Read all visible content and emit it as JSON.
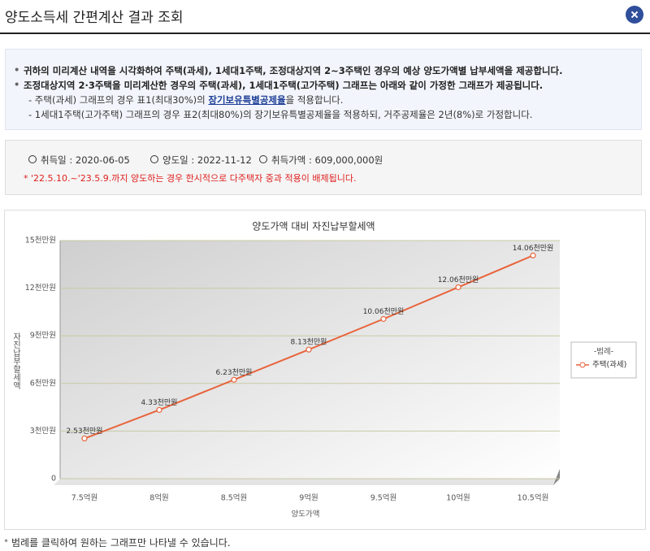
{
  "header": {
    "title": "양도소득세 간편계산 결과 조회"
  },
  "notice": {
    "items": [
      "귀하의 미리계산 내역을 시각화하여 주택(과세), 1세대1주택, 조정대상지역 2~3주택인 경우의 예상 양도가액별 납부세액을 제공합니다.",
      "조정대상지역 2·3주택을 미리계산한 경우의 주택(과세), 1세대1주택(고가주택) 그래프는 아래와 같이 가정한 그래프가 제공됩니다."
    ],
    "sub1": {
      "before": "- 주택(과세) 그래프의 경우 표1(최대30%)의 ",
      "link": "장기보유특별공제율",
      "after": "을 적용합니다."
    },
    "sub2": "- 1세대1주택(고가주택) 그래프의 경우 표2(최대80%)의 장기보유특별공제율을 적용하되, 거주공제율은 2년(8%)로 가정합니다."
  },
  "info": {
    "items": [
      "취득일 : 2020-06-05",
      "양도일 : 2022-11-12",
      "취득가액 : 609,000,000원"
    ],
    "warning": "* '22.5.10.~'23.5.9.까지 양도하는 경우 한시적으로 다주택자 중과 적용이 배제됩니다."
  },
  "chart_data": {
    "type": "line",
    "title": "양도가액 대비 자진납부할세액",
    "x_label": "양도가액",
    "y_label": "자진납부할세액",
    "categories": [
      "7.5억원",
      "8억원",
      "8.5억원",
      "9억원",
      "9.5억원",
      "10억원",
      "10.5억원"
    ],
    "series": [
      {
        "name": "주택(과세)",
        "color": "#e8643c",
        "values": [
          2.53,
          4.33,
          6.23,
          8.13,
          10.06,
          12.06,
          14.06
        ],
        "value_labels": [
          "2.53천만원",
          "4.33천만원",
          "6.23천만원",
          "8.13천만원",
          "10.06천만원",
          "12.06천만원",
          "14.06천만원"
        ]
      }
    ],
    "ylim": [
      0,
      15
    ],
    "yticks": [
      0,
      {
        "value": 3,
        "label": "3천만원"
      },
      {
        "value": 6,
        "label": "6천만원"
      },
      {
        "value": 9,
        "label": "9천만원"
      },
      {
        "value": 12,
        "label": "12천만원"
      },
      {
        "value": 15,
        "label": "15천만원"
      }
    ],
    "grid": true,
    "legend_title": "-범례-",
    "legend_position": "right"
  },
  "footer": {
    "note": "범례를 클릭하여 원하는 그래프만 나타낼 수 있습니다."
  }
}
